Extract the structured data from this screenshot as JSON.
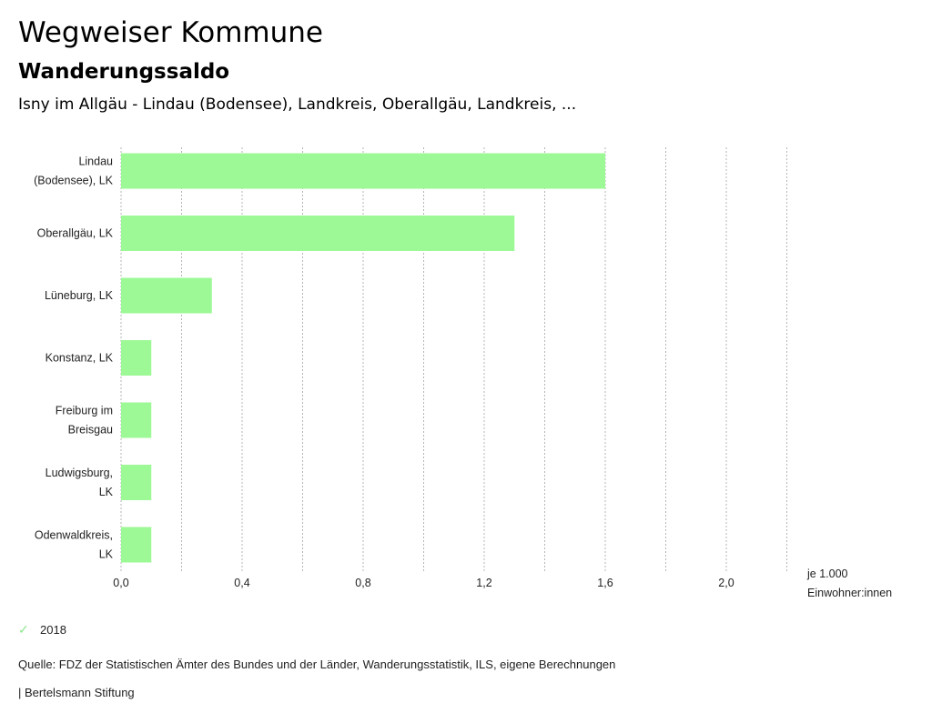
{
  "header": {
    "title": "Wegweiser Kommune",
    "subtitle": "Wanderungssaldo",
    "context": "Isny im Allgäu - Lindau (Bodensee), Landkreis, Oberallgäu, Landkreis, ..."
  },
  "chart_data": {
    "type": "bar",
    "orientation": "horizontal",
    "title": "Wanderungssaldo",
    "categories": [
      [
        "Lindau",
        "(Bodensee), LK"
      ],
      [
        "Oberallgäu, LK"
      ],
      [
        "Lüneburg, LK"
      ],
      [
        "Konstanz, LK"
      ],
      [
        "Freiburg im",
        "Breisgau"
      ],
      [
        "Ludwigsburg,",
        "LK"
      ],
      [
        "Odenwaldkreis,",
        "LK"
      ]
    ],
    "series": [
      {
        "name": "2018",
        "color": "#9cf996",
        "values": [
          1.6,
          1.3,
          0.3,
          0.1,
          0.1,
          0.1,
          0.1
        ]
      }
    ],
    "xlim": [
      0,
      2.2
    ],
    "xticks": [
      0,
      0.4,
      0.8,
      1.2,
      1.6,
      2.0
    ],
    "xtick_labels": [
      "0,0",
      "0,4",
      "0,8",
      "1,2",
      "1,6",
      "2,0"
    ],
    "gridlines": [
      0,
      0.2,
      0.4,
      0.6,
      0.8,
      1.0,
      1.2,
      1.4,
      1.6,
      1.8,
      2.0,
      2.2
    ],
    "xlabel": [
      "je 1.000",
      "Einwohner:innen"
    ],
    "ylabel": "",
    "grid": true,
    "legend_position": "bottom-left"
  },
  "legend": {
    "label": "2018",
    "icon": "check-icon",
    "color": "#8fe88f"
  },
  "footer": {
    "source": "Quelle: FDZ der Statistischen Ämter des Bundes und der Länder, Wanderungsstatistik, ILS, eigene Berechnungen",
    "credit": "| Bertelsmann Stiftung"
  }
}
